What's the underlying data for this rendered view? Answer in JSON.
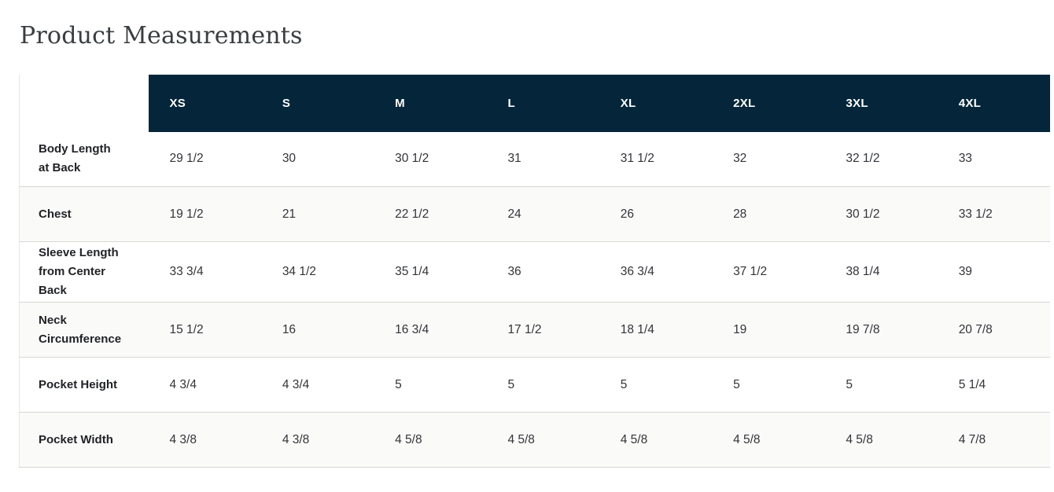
{
  "page": {
    "title": "Product Measurements",
    "background": "#ffffff"
  },
  "theme": {
    "title_color": "#3a3e41",
    "header_bg": "#05263a",
    "header_text": "#ffffff",
    "stripe_bg": "#fafaf9",
    "border_color": "#d6d6d4",
    "label_color": "#1f2125",
    "value_color": "#323438"
  },
  "table": {
    "sizes": [
      "XS",
      "S",
      "M",
      "L",
      "XL",
      "2XL",
      "3XL",
      "4XL"
    ],
    "rows": [
      {
        "label": "Body Length at Back",
        "values": [
          "29 1/2",
          "30",
          "30 1/2",
          "31",
          "31 1/2",
          "32",
          "32 1/2",
          "33"
        ]
      },
      {
        "label": "Chest",
        "values": [
          "19 1/2",
          "21",
          "22 1/2",
          "24",
          "26",
          "28",
          "30 1/2",
          "33 1/2"
        ]
      },
      {
        "label": "Sleeve Length from Center Back",
        "values": [
          "33 3/4",
          "34 1/2",
          "35 1/4",
          "36",
          "36 3/4",
          "37 1/2",
          "38 1/4",
          "39"
        ]
      },
      {
        "label": "Neck Circumference",
        "values": [
          "15 1/2",
          "16",
          "16 3/4",
          "17 1/2",
          "18 1/4",
          "19",
          "19 7/8",
          "20 7/8"
        ]
      },
      {
        "label": "Pocket Height",
        "values": [
          "4 3/4",
          "4 3/4",
          "5",
          "5",
          "5",
          "5",
          "5",
          "5 1/4"
        ]
      },
      {
        "label": "Pocket Width",
        "values": [
          "4 3/8",
          "4 3/8",
          "4 5/8",
          "4 5/8",
          "4 5/8",
          "4 5/8",
          "4 5/8",
          "4 7/8"
        ]
      }
    ]
  }
}
